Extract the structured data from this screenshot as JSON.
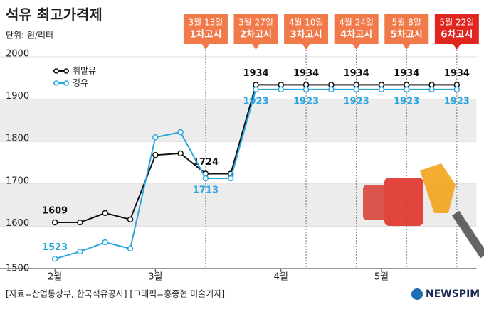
{
  "chart_data": {
    "type": "line",
    "title": "석유 최고가격제",
    "subtitle": "단위: 원/리터",
    "categories": [
      "2월",
      null,
      null,
      null,
      "3월",
      null,
      null,
      null,
      null,
      "4월",
      null,
      null,
      null,
      "5월",
      null,
      null,
      null
    ],
    "series": [
      {
        "name": "휘발유",
        "color": "#111111",
        "values": [
          1609,
          1609,
          1631,
          1616,
          1768,
          1772,
          1724,
          1724,
          1934,
          1934,
          1934,
          1934,
          1934,
          1934,
          1934,
          1934,
          1934
        ],
        "value_labels": [
          "1609",
          null,
          null,
          null,
          null,
          null,
          "1724",
          null,
          "1934",
          null,
          "1934",
          null,
          "1934",
          null,
          "1934",
          null,
          "1934"
        ]
      },
      {
        "name": "경유",
        "color": "#2aa7df",
        "values": [
          1523,
          1540,
          1562,
          1547,
          1810,
          1822,
          1713,
          1713,
          1923,
          1923,
          1923,
          1923,
          1923,
          1923,
          1923,
          1923,
          1923
        ],
        "value_labels": [
          "1523",
          null,
          null,
          null,
          null,
          null,
          "1713",
          null,
          "1923",
          null,
          "1923",
          null,
          "1923",
          null,
          "1923",
          null,
          "1923"
        ]
      }
    ],
    "ylim": [
      1500,
      2000
    ],
    "yticks": [
      1500,
      1600,
      1700,
      1800,
      1900,
      2000
    ],
    "grid": "bands",
    "legend": "top-left",
    "annotations": [
      {
        "date": "3월 13일",
        "label": "1차고시",
        "color": "#f07a4a"
      },
      {
        "date": "3월 27일",
        "label": "2차고시",
        "color": "#f07a4a"
      },
      {
        "date": "4월 10일",
        "label": "3차고시",
        "color": "#f07a4a"
      },
      {
        "date": "4월 24일",
        "label": "4차고시",
        "color": "#f07a4a"
      },
      {
        "date": "5월 8일",
        "label": "5차고시",
        "color": "#f07a4a"
      },
      {
        "date": "5월 22일",
        "label": "6차고시",
        "color": "#e0261f"
      }
    ],
    "source": "[자료=산업통상부, 한국석유공사] [그래픽=홍종현 미술기자]",
    "logo": "NEWSPIM"
  }
}
